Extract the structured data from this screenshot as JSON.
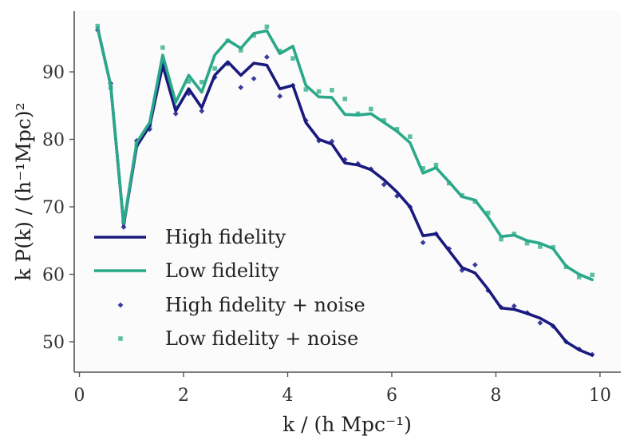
{
  "chart_data": {
    "type": "line",
    "title": "",
    "xlabel": "k / (h Mpc⁻¹)",
    "ylabel": "k P(k) / (h⁻¹Mpc)²",
    "xlim": [
      -0.1,
      10.4
    ],
    "ylim": [
      45.5,
      99
    ],
    "xticks": [
      0,
      2,
      4,
      6,
      8,
      10
    ],
    "yticks": [
      50,
      60,
      70,
      80,
      90
    ],
    "grid": false,
    "legend_position": "lower-left",
    "series": [
      {
        "name": "High fidelity",
        "kind": "line",
        "color": "#1a1a7e",
        "x": [
          0.35,
          0.6,
          0.85,
          1.1,
          1.35,
          1.6,
          1.85,
          2.1,
          2.35,
          2.6,
          2.85,
          3.1,
          3.35,
          3.6,
          3.85,
          4.1,
          4.35,
          4.6,
          4.85,
          5.1,
          5.35,
          5.6,
          5.85,
          6.1,
          6.35,
          6.6,
          6.85,
          7.1,
          7.35,
          7.6,
          7.85,
          8.1,
          8.35,
          8.6,
          8.85,
          9.1,
          9.35,
          9.6,
          9.85
        ],
        "y": [
          96.5,
          88,
          67.3,
          79,
          82,
          91,
          84.2,
          87.5,
          84.7,
          89.5,
          91.5,
          89.5,
          91.3,
          91,
          87.5,
          88,
          82.5,
          80,
          79.3,
          76.5,
          76.2,
          75.5,
          74,
          72.2,
          70,
          65.7,
          66,
          63.5,
          61,
          60.2,
          57.8,
          55,
          54.8,
          54.2,
          53.5,
          52.4,
          50,
          48.8,
          48
        ]
      },
      {
        "name": "Low fidelity",
        "kind": "line",
        "color": "#2aa88a",
        "x": [
          0.35,
          0.6,
          0.85,
          1.1,
          1.35,
          1.6,
          1.85,
          2.1,
          2.35,
          2.6,
          2.85,
          3.1,
          3.35,
          3.6,
          3.85,
          4.1,
          4.35,
          4.6,
          4.85,
          5.1,
          5.35,
          5.6,
          5.85,
          6.1,
          6.35,
          6.6,
          6.85,
          7.1,
          7.35,
          7.6,
          7.85,
          8.1,
          8.35,
          8.6,
          8.85,
          9.1,
          9.35,
          9.6,
          9.85
        ],
        "y": [
          96.5,
          88,
          67.5,
          79.5,
          82.5,
          92.5,
          85.5,
          89.5,
          87,
          92.5,
          94.7,
          93.5,
          95.7,
          96.1,
          92.7,
          93.8,
          88,
          86.3,
          86.2,
          83.7,
          83.6,
          83.8,
          82.5,
          81.2,
          79.5,
          75,
          75.8,
          73.7,
          71.5,
          71,
          68.5,
          65.6,
          65.8,
          65,
          64.6,
          63.8,
          61.2,
          60,
          59.2
        ]
      },
      {
        "name": "High fidelity + noise",
        "kind": "scatter",
        "marker": "diamond",
        "color": "#3b3b9e",
        "x": [
          0.35,
          0.6,
          0.85,
          1.1,
          1.35,
          1.6,
          1.85,
          2.1,
          2.35,
          2.6,
          2.85,
          3.1,
          3.35,
          3.6,
          3.85,
          4.1,
          4.35,
          4.6,
          4.85,
          5.1,
          5.35,
          5.6,
          5.85,
          6.1,
          6.35,
          6.6,
          6.85,
          7.1,
          7.35,
          7.6,
          7.85,
          8.1,
          8.35,
          8.6,
          8.85,
          9.1,
          9.35,
          9.6,
          9.85
        ],
        "y": [
          96.2,
          88.3,
          67,
          79.8,
          81.5,
          91.2,
          83.8,
          86.8,
          84.2,
          89.2,
          91.2,
          87.7,
          89,
          92.2,
          86.4,
          88,
          82.8,
          79.8,
          79.7,
          77,
          76.4,
          75.6,
          73.3,
          71.6,
          70,
          64.7,
          66,
          63.8,
          60.6,
          61.4,
          57.6,
          55.1,
          55.3,
          54.3,
          52.8,
          52.3,
          50,
          48.9,
          48.1
        ]
      },
      {
        "name": "Low fidelity + noise",
        "kind": "scatter",
        "marker": "square",
        "color": "#5cc0a0",
        "x": [
          0.35,
          0.6,
          0.85,
          1.1,
          1.35,
          1.6,
          1.85,
          2.1,
          2.35,
          2.6,
          2.85,
          3.1,
          3.35,
          3.6,
          3.85,
          4.1,
          4.35,
          4.6,
          4.85,
          5.1,
          5.35,
          5.6,
          5.85,
          6.1,
          6.35,
          6.6,
          6.85,
          7.1,
          7.35,
          7.6,
          7.85,
          8.1,
          8.35,
          8.6,
          8.85,
          9.1,
          9.35,
          9.6,
          9.85
        ],
        "y": [
          96.8,
          87.7,
          67.8,
          79.2,
          82,
          93.6,
          84.8,
          88.6,
          88.5,
          90.5,
          94.6,
          93.2,
          95.4,
          96.7,
          93.1,
          92,
          87.4,
          87.1,
          87.3,
          86,
          83.8,
          84.5,
          82.8,
          81.5,
          80.4,
          75.7,
          76.2,
          73.5,
          71.7,
          70.8,
          69.1,
          65.2,
          66,
          64.6,
          64.1,
          64,
          61.1,
          59.6,
          59.9
        ]
      }
    ]
  }
}
